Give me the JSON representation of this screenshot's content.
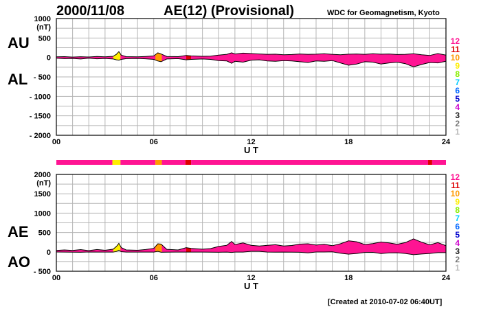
{
  "header": {
    "date": "2000/11/08",
    "title": "AE(12) (Provisional)",
    "organization": "WDC for Geomagnetism, Kyoto"
  },
  "footer": {
    "created": "[Created at 2010-07-02 06:40UT]"
  },
  "legend": {
    "labels": [
      "12",
      "11",
      "10",
      "9",
      "8",
      "7",
      "6",
      "5",
      "4",
      "3",
      "2",
      "1"
    ],
    "colors": [
      "#ff1493",
      "#dd0000",
      "#ff9900",
      "#ffee00",
      "#88ee00",
      "#00ccff",
      "#0066ff",
      "#0000cc",
      "#cc00cc",
      "#222222",
      "#777777",
      "#bbbbbb"
    ]
  },
  "station_bar": {
    "segments": [
      {
        "start": 0,
        "end": 3.45,
        "color": "#ff1493"
      },
      {
        "start": 3.45,
        "end": 3.95,
        "color": "#ffee00"
      },
      {
        "start": 3.95,
        "end": 6.1,
        "color": "#ff1493"
      },
      {
        "start": 6.1,
        "end": 6.5,
        "color": "#ff9900"
      },
      {
        "start": 6.5,
        "end": 7.95,
        "color": "#ff1493"
      },
      {
        "start": 7.95,
        "end": 8.3,
        "color": "#dd0000"
      },
      {
        "start": 8.3,
        "end": 22.9,
        "color": "#ff1493"
      },
      {
        "start": 22.9,
        "end": 23.15,
        "color": "#dd0000"
      },
      {
        "start": 23.15,
        "end": 24,
        "color": "#ff1493"
      }
    ]
  },
  "chart_data": [
    {
      "type": "area",
      "title": "AU / AL",
      "panel_labels": [
        "AU",
        "AL"
      ],
      "ylabel": "(nT)",
      "xlabel": "U T",
      "xlim": [
        0,
        24
      ],
      "ylim": [
        -2000,
        1000
      ],
      "xticks": [
        {
          "v": 0,
          "label": "00"
        },
        {
          "v": 6,
          "label": "06"
        },
        {
          "v": 12,
          "label": "12"
        },
        {
          "v": 18,
          "label": "18"
        },
        {
          "v": 24,
          "label": "24"
        }
      ],
      "yticks": [
        {
          "v": 1000,
          "label": "1000"
        },
        {
          "v": 500,
          "label": "500"
        },
        {
          "v": 0,
          "label": "0"
        },
        {
          "v": -500,
          "label": "- 500"
        },
        {
          "v": -1000,
          "label": "- 1000"
        },
        {
          "v": -1500,
          "label": "- 1500"
        },
        {
          "v": -2000,
          "label": "- 2000"
        }
      ],
      "ygrid_step": 250,
      "xgrid_step": 1,
      "series": [
        {
          "name": "AU",
          "x": [
            0,
            0.5,
            1,
            1.5,
            2,
            2.5,
            3,
            3.5,
            3.7,
            3.85,
            4,
            4.3,
            5,
            5.5,
            6,
            6.25,
            6.45,
            6.8,
            7.5,
            8,
            8.3,
            9,
            9.5,
            10,
            10.5,
            10.8,
            11,
            11.5,
            12,
            12.5,
            13,
            13.5,
            14,
            14.5,
            15,
            15.5,
            16,
            16.5,
            17,
            17.5,
            18,
            18.5,
            19,
            19.5,
            20,
            20.5,
            21,
            21.5,
            22,
            22.5,
            23,
            23.5,
            24
          ],
          "y": [
            15,
            20,
            10,
            18,
            12,
            25,
            15,
            30,
            80,
            150,
            60,
            20,
            15,
            25,
            40,
            120,
            90,
            25,
            20,
            50,
            40,
            30,
            35,
            60,
            80,
            120,
            90,
            110,
            100,
            90,
            80,
            85,
            70,
            75,
            90,
            80,
            85,
            95,
            80,
            70,
            85,
            90,
            80,
            95,
            85,
            90,
            75,
            80,
            95,
            70,
            50,
            100,
            60
          ]
        },
        {
          "name": "AL",
          "x": [
            0,
            0.5,
            1,
            1.5,
            2,
            2.5,
            3,
            3.5,
            3.7,
            3.85,
            4,
            4.3,
            5,
            5.5,
            6,
            6.25,
            6.45,
            6.8,
            7.5,
            8,
            8.3,
            9,
            9.5,
            10,
            10.5,
            10.8,
            11,
            11.5,
            12,
            12.5,
            13,
            13.5,
            14,
            14.5,
            15,
            15.5,
            16,
            16.5,
            17,
            17.5,
            18,
            18.5,
            19,
            19.5,
            20,
            20.5,
            21,
            21.5,
            22,
            22.5,
            23,
            23.5,
            24
          ],
          "y": [
            -20,
            -30,
            -25,
            -40,
            -20,
            -35,
            -25,
            -40,
            -60,
            -70,
            -50,
            -30,
            -25,
            -35,
            -50,
            -90,
            -110,
            -40,
            -30,
            -60,
            -50,
            -40,
            -50,
            -80,
            -90,
            -150,
            -100,
            -120,
            -70,
            -60,
            -90,
            -100,
            -80,
            -90,
            -110,
            -130,
            -90,
            -100,
            -80,
            -140,
            -200,
            -170,
            -110,
            -120,
            -170,
            -140,
            -120,
            -160,
            -240,
            -180,
            -130,
            -140,
            -100
          ]
        }
      ]
    },
    {
      "type": "area",
      "title": "AE / AO",
      "panel_labels": [
        "AE",
        "AO"
      ],
      "ylabel": "(nT)",
      "xlabel": "U T",
      "xlim": [
        0,
        24
      ],
      "ylim": [
        -500,
        2000
      ],
      "xticks": [
        {
          "v": 0,
          "label": "00"
        },
        {
          "v": 6,
          "label": "06"
        },
        {
          "v": 12,
          "label": "12"
        },
        {
          "v": 18,
          "label": "18"
        },
        {
          "v": 24,
          "label": "24"
        }
      ],
      "yticks": [
        {
          "v": 2000,
          "label": "2000"
        },
        {
          "v": 1500,
          "label": "1500"
        },
        {
          "v": 1000,
          "label": "1000"
        },
        {
          "v": 500,
          "label": "500"
        },
        {
          "v": 0,
          "label": "0"
        },
        {
          "v": -500,
          "label": "- 500"
        }
      ],
      "ygrid_step": 250,
      "xgrid_step": 1,
      "series": [
        {
          "name": "AE",
          "x": [
            0,
            0.5,
            1,
            1.5,
            2,
            2.5,
            3,
            3.5,
            3.7,
            3.85,
            4,
            4.3,
            5,
            5.5,
            6,
            6.25,
            6.45,
            6.8,
            7.5,
            8,
            8.3,
            9,
            9.5,
            10,
            10.5,
            10.8,
            11,
            11.5,
            12,
            12.5,
            13,
            13.5,
            14,
            14.5,
            15,
            15.5,
            16,
            16.5,
            17,
            17.5,
            18,
            18.5,
            19,
            19.5,
            20,
            20.5,
            21,
            21.5,
            22,
            22.5,
            23,
            23.5,
            24
          ],
          "y": [
            35,
            50,
            35,
            58,
            32,
            60,
            40,
            70,
            140,
            220,
            110,
            50,
            40,
            60,
            90,
            210,
            200,
            65,
            50,
            110,
            90,
            70,
            85,
            140,
            170,
            270,
            190,
            230,
            170,
            150,
            170,
            185,
            150,
            165,
            200,
            210,
            175,
            195,
            160,
            210,
            285,
            260,
            190,
            215,
            255,
            230,
            195,
            240,
            335,
            250,
            180,
            240,
            160
          ]
        },
        {
          "name": "AO",
          "x": [
            0,
            0.5,
            1,
            1.5,
            2,
            2.5,
            3,
            3.5,
            3.7,
            3.85,
            4,
            4.3,
            5,
            5.5,
            6,
            6.25,
            6.45,
            6.8,
            7.5,
            8,
            8.3,
            9,
            9.5,
            10,
            10.5,
            10.8,
            11,
            11.5,
            12,
            12.5,
            13,
            13.5,
            14,
            14.5,
            15,
            15.5,
            16,
            16.5,
            17,
            17.5,
            18,
            18.5,
            19,
            19.5,
            20,
            20.5,
            21,
            21.5,
            22,
            22.5,
            23,
            23.5,
            24
          ],
          "y": [
            -3,
            -5,
            -8,
            -11,
            -4,
            -5,
            -5,
            -5,
            10,
            40,
            5,
            -5,
            -5,
            -5,
            -5,
            15,
            -10,
            -8,
            -5,
            -5,
            -5,
            -5,
            -8,
            -10,
            -5,
            -15,
            -5,
            -5,
            15,
            15,
            -5,
            -8,
            -5,
            -8,
            -10,
            -25,
            -3,
            -3,
            0,
            -35,
            -58,
            -40,
            -15,
            -13,
            -43,
            -25,
            -23,
            -40,
            -73,
            -55,
            -40,
            -20,
            -20
          ]
        }
      ]
    }
  ]
}
